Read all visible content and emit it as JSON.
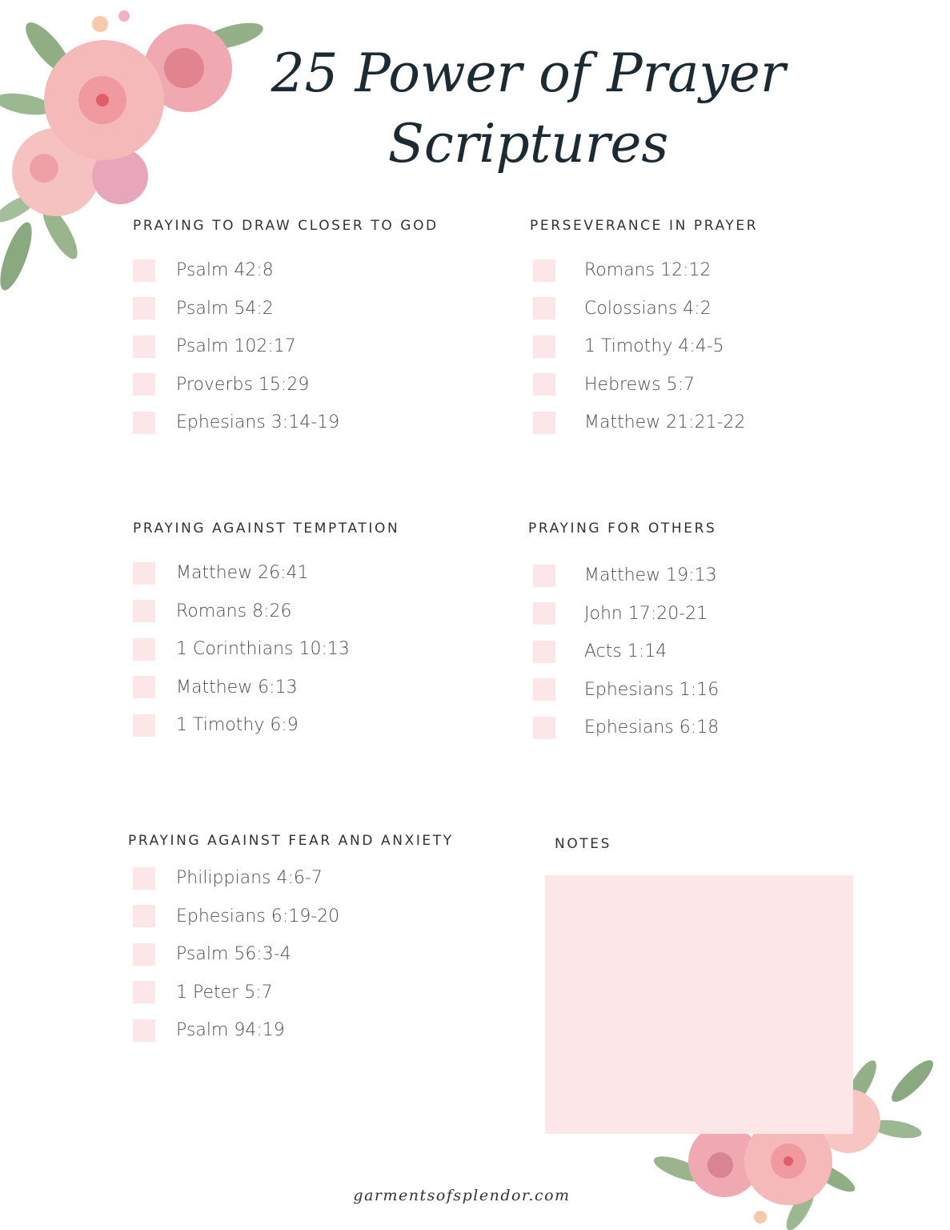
{
  "title": {
    "line1": "25 Power of Prayer",
    "line2": "Scriptures"
  },
  "colors": {
    "checkbox": "#fde6e7",
    "title": "#1b2a33",
    "text": "#4a4e54"
  },
  "sections": [
    {
      "heading": "PRAYING TO DRAW CLOSER TO GOD",
      "items": [
        "Psalm 42:8",
        "Psalm 54:2",
        "Psalm 102:17",
        "Proverbs 15:29",
        "Ephesians 3:14-19"
      ]
    },
    {
      "heading": "PERSEVERANCE IN PRAYER",
      "items": [
        "Romans 12:12",
        "Colossians 4:2",
        "1 Timothy 4:4-5",
        "Hebrews 5:7",
        "Matthew 21:21-22"
      ]
    },
    {
      "heading": "PRAYING AGAINST TEMPTATION",
      "items": [
        "Matthew 26:41",
        "Romans 8:26",
        "1 Corinthians 10:13",
        "Matthew 6:13",
        "1 Timothy 6:9"
      ]
    },
    {
      "heading": "PRAYING FOR OTHERS",
      "items": [
        "Matthew 19:13",
        "John 17:20-21",
        "Acts 1:14",
        "Ephesians 1:16",
        "Ephesians 6:18"
      ]
    },
    {
      "heading": "PRAYING AGAINST FEAR AND ANXIETY",
      "items": [
        "Philippians 4:6-7",
        "Ephesians 6:19-20",
        "Psalm 56:3-4",
        "1 Peter 5:7",
        "Psalm 94:19"
      ]
    }
  ],
  "notes": {
    "heading": "NOTES"
  },
  "footer": "garmentsofsplendor.com"
}
